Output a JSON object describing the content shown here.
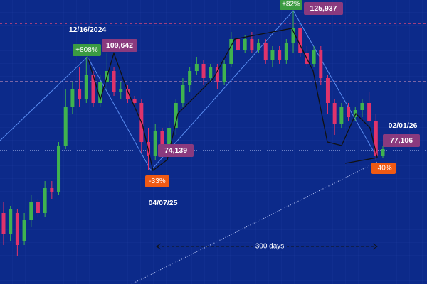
{
  "chart_data": {
    "type": "candlestick",
    "up_color": "#3fb34f",
    "down_color": "#e0336b",
    "open": [
      60400,
      53500,
      60400,
      51200,
      58100,
      63850,
      60400,
      68450,
      67300,
      82250,
      94900,
      100650,
      97200,
      105250,
      96050,
      102950,
      106400,
      99500,
      100650,
      97200,
      96050,
      83400,
      78800,
      86850,
      79950,
      88000,
      96050,
      101800,
      106400,
      108700,
      104100,
      107550,
      102950,
      108700,
      116750,
      113300,
      116750,
      113300,
      115600,
      109850,
      113300,
      109850,
      115600,
      120200,
      112150,
      108700,
      113300,
      104100,
      96050,
      89150,
      94900,
      91450,
      93750,
      96050,
      90300,
      78800
    ],
    "high": [
      63850,
      62700,
      61550,
      60400,
      66150,
      65000,
      70750,
      70750,
      83400,
      100650,
      102950,
      107550,
      111000,
      106400,
      105250,
      112150,
      107550,
      102950,
      101800,
      98350,
      97200,
      88000,
      89150,
      88000,
      90300,
      97200,
      104100,
      107550,
      111000,
      109850,
      108700,
      108700,
      109850,
      119050,
      117900,
      117900,
      119050,
      116750,
      116750,
      114450,
      114450,
      116750,
      125950,
      121350,
      114450,
      114450,
      114450,
      105250,
      97200,
      96050,
      96050,
      94900,
      97200,
      99500,
      92600,
      82250
    ],
    "low": [
      50050,
      51200,
      46600,
      50050,
      55800,
      59250,
      59250,
      65000,
      66150,
      81100,
      92600,
      94900,
      96050,
      94900,
      94900,
      99500,
      98350,
      97200,
      96050,
      94900,
      79950,
      74200,
      77650,
      78800,
      78800,
      85700,
      94900,
      99500,
      105250,
      101800,
      102950,
      100650,
      101800,
      107550,
      109850,
      112150,
      112150,
      112150,
      108700,
      107550,
      108700,
      108700,
      112150,
      111000,
      107550,
      107550,
      101800,
      92600,
      85700,
      88000,
      90300,
      90300,
      91450,
      89150,
      77650,
      78340
    ],
    "close": [
      53500,
      61550,
      50050,
      58100,
      63850,
      60400,
      68450,
      67300,
      82250,
      94900,
      100650,
      97200,
      105250,
      96050,
      102950,
      106400,
      99500,
      100650,
      97200,
      96050,
      83400,
      78800,
      86850,
      79950,
      88000,
      96050,
      101800,
      106400,
      108700,
      104100,
      107550,
      102950,
      108700,
      116750,
      113300,
      116750,
      113300,
      115600,
      109850,
      113300,
      109850,
      115600,
      120200,
      112150,
      108700,
      113300,
      104100,
      96050,
      89150,
      94900,
      91450,
      93750,
      96050,
      90300,
      78800,
      81100
    ],
    "annotations": {
      "peak1_date": "12/16/2024",
      "peak1_change": "+808%",
      "peak1_price": "109,642",
      "low1_change": "-33%",
      "low1_price": "74,139",
      "low1_date": "04/07/25",
      "peak2_change": "+82%",
      "peak2_price": "125,937",
      "low2_date": "02/01/26",
      "low2_price": "77,106",
      "low2_change": "-40%",
      "span": "300 days"
    }
  }
}
